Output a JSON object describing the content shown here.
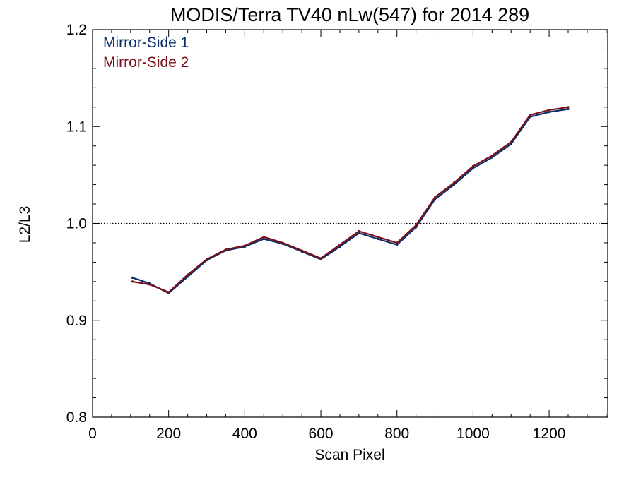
{
  "chart_data": {
    "type": "line",
    "title": "MODIS/Terra TV40 nLw(547) for 2014 289",
    "xlabel": "Scan Pixel",
    "ylabel": "L2/L3",
    "xlim": [
      0,
      1354
    ],
    "ylim": [
      0.8,
      1.2
    ],
    "x_ticks": [
      0,
      200,
      400,
      600,
      800,
      1000,
      1200
    ],
    "x_tick_labels": [
      "0",
      "200",
      "400",
      "600",
      "800",
      "1000",
      "1200"
    ],
    "y_ticks": [
      0.8,
      0.9,
      1.0,
      1.1,
      1.2
    ],
    "y_tick_labels": [
      "0.8",
      "0.9",
      "1.0",
      "1.1",
      "1.2"
    ],
    "reference_line": {
      "y": 1.0,
      "style": "dotted"
    },
    "grid": false,
    "legend_position": "top-left",
    "colors": {
      "mirror_side_1": "#0b2f6b",
      "mirror_side_2": "#7a0f17"
    },
    "series": [
      {
        "name": "Mirror-Side 1",
        "x": [
          105,
          150,
          200,
          250,
          300,
          350,
          400,
          450,
          500,
          550,
          600,
          650,
          700,
          750,
          800,
          850,
          900,
          950,
          1000,
          1050,
          1100,
          1150,
          1200,
          1250
        ],
        "y": [
          0.944,
          0.938,
          0.928,
          0.945,
          0.962,
          0.972,
          0.976,
          0.984,
          0.979,
          0.971,
          0.963,
          0.976,
          0.99,
          0.984,
          0.978,
          0.996,
          1.025,
          1.04,
          1.057,
          1.068,
          1.082,
          1.11,
          1.115,
          1.118
        ]
      },
      {
        "name": "Mirror-Side 2",
        "x": [
          105,
          150,
          200,
          250,
          300,
          350,
          400,
          450,
          500,
          550,
          600,
          650,
          700,
          750,
          800,
          850,
          900,
          950,
          1000,
          1050,
          1100,
          1150,
          1200,
          1250
        ],
        "y": [
          0.94,
          0.937,
          0.929,
          0.947,
          0.963,
          0.973,
          0.977,
          0.986,
          0.98,
          0.972,
          0.964,
          0.978,
          0.992,
          0.986,
          0.98,
          0.998,
          1.027,
          1.042,
          1.059,
          1.07,
          1.084,
          1.112,
          1.117,
          1.12
        ]
      }
    ]
  }
}
